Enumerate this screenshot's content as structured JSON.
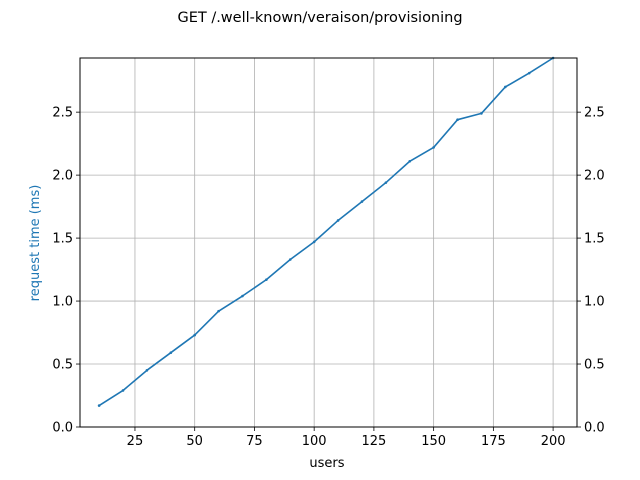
{
  "chart_data": {
    "type": "line",
    "title": "GET /.well-known/veraison/provisioning",
    "xlabel": "users",
    "ylabel": "request time (ms)",
    "xlim": [
      2,
      210
    ],
    "ylim": [
      0,
      2.93
    ],
    "x_ticks": [
      25,
      50,
      75,
      100,
      125,
      150,
      175,
      200
    ],
    "x_tick_labels": [
      "25",
      "50",
      "75",
      "100",
      "125",
      "150",
      "175",
      "200"
    ],
    "y_ticks": [
      0,
      0.5,
      1.0,
      1.5,
      2.0,
      2.5
    ],
    "y_tick_labels": [
      "0.0",
      "0.5",
      "1.0",
      "1.5",
      "2.0",
      "2.5"
    ],
    "right_y_tick_labels": [
      "0.0",
      "0.5",
      "1.0",
      "1.5",
      "2.0",
      "2.5"
    ],
    "grid": true,
    "series": [
      {
        "color": "#1f77b4",
        "x": [
          10,
          20,
          30,
          40,
          50,
          60,
          70,
          80,
          90,
          100,
          110,
          120,
          130,
          140,
          150,
          160,
          170,
          180,
          190,
          200
        ],
        "values": [
          0.17,
          0.29,
          0.45,
          0.59,
          0.73,
          0.92,
          1.04,
          1.17,
          1.33,
          1.47,
          1.64,
          1.79,
          1.94,
          2.11,
          2.22,
          2.44,
          2.49,
          2.7,
          2.81,
          2.93
        ]
      }
    ]
  }
}
